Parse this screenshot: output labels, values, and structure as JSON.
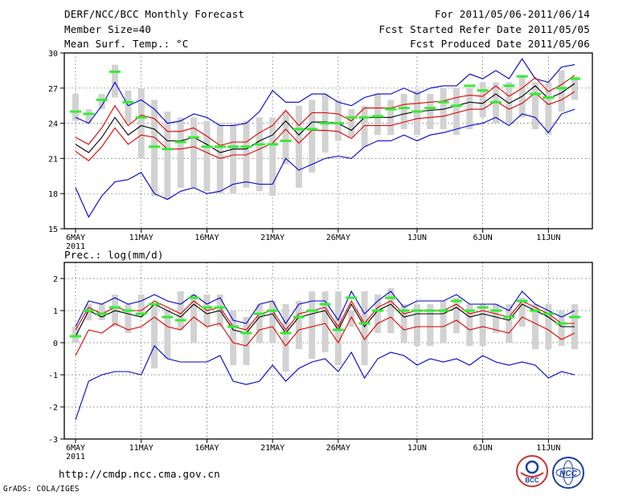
{
  "header": {
    "title": "DERF/NCC/BCC Monthly Forecast",
    "member_size": "Member Size=40",
    "variable": "Mean Surf. Temp.: °C",
    "period": "For 2011/05/06-2011/06/14",
    "started": "Fcst Started Refer Date 2011/05/05",
    "produced": "Fcst Produced Date 2011/05/06"
  },
  "footer": {
    "url": "http://cmdp.ncc.cma.gov.cn",
    "credit": "GrADS: COLA/IGES",
    "logo_left": "BCC",
    "logo_right": "NCC"
  },
  "colors": {
    "box": "#d2d2d2",
    "median": "#33ee33",
    "mean": "#000000",
    "inner_band": "#dd0000",
    "outer_band": "#0000cc",
    "frame": "#000000"
  },
  "chart_data": [
    {
      "type": "box-ensemble",
      "title": "Mean Surf. Temp.: °C",
      "ylim": [
        15,
        30
      ],
      "yticks": [
        15,
        18,
        21,
        24,
        27,
        30
      ],
      "xtick_labels": [
        "6MAY",
        "11MAY",
        "16MAY",
        "21MAY",
        "26MAY",
        "1JUN",
        "6JUN",
        "11JUN"
      ],
      "xtick_days": [
        0,
        5,
        10,
        15,
        20,
        26,
        31,
        36
      ],
      "year_label": "2011",
      "days": 39,
      "box_low": [
        24.2,
        24.0,
        25.2,
        26.2,
        24.0,
        21.0,
        17.8,
        17.5,
        18.5,
        18.5,
        18.2,
        18.0,
        18.0,
        18.5,
        18.2,
        17.8,
        20.5,
        18.5,
        19.8,
        21.5,
        22.5,
        22.8,
        22.0,
        23.0,
        23.0,
        23.5,
        23.0,
        23.5,
        23.5,
        23.0,
        23.5,
        24.5,
        24.0,
        24.0,
        24.5,
        23.5,
        23.0,
        25.0,
        26.0
      ],
      "box_high": [
        26.5,
        25.2,
        26.5,
        29.0,
        26.8,
        27.0,
        26.0,
        25.0,
        24.5,
        24.5,
        24.2,
        24.0,
        24.0,
        24.2,
        24.5,
        24.5,
        25.0,
        25.5,
        26.0,
        26.5,
        26.0,
        25.2,
        25.5,
        26.5,
        26.0,
        26.5,
        26.8,
        26.5,
        27.0,
        27.0,
        27.0,
        27.5,
        27.5,
        27.5,
        28.0,
        27.5,
        27.5,
        28.5,
        28.0
      ],
      "median": [
        25.0,
        24.8,
        26.0,
        28.4,
        25.8,
        24.5,
        22.0,
        21.8,
        22.4,
        22.8,
        22.0,
        22.0,
        22.0,
        22.0,
        22.2,
        22.2,
        22.5,
        23.5,
        23.5,
        24.0,
        24.0,
        24.5,
        24.5,
        24.6,
        25.2,
        25.3,
        25.0,
        25.3,
        25.8,
        25.5,
        27.2,
        26.8,
        25.8,
        27.2,
        28.0,
        26.5,
        26.2,
        27.0,
        27.8
      ],
      "mean": [
        22.2,
        21.5,
        22.8,
        24.5,
        23.0,
        23.8,
        23.5,
        22.5,
        22.5,
        22.8,
        22.2,
        21.5,
        21.8,
        21.8,
        22.5,
        23.0,
        24.2,
        23.0,
        24.1,
        24.1,
        24.0,
        23.4,
        24.5,
        24.5,
        24.5,
        24.8,
        25.0,
        25.1,
        25.2,
        25.5,
        25.8,
        25.7,
        26.5,
        25.7,
        26.3,
        27.2,
        26.1,
        26.6,
        27.4
      ],
      "inner_low": [
        21.6,
        20.8,
        22.0,
        23.6,
        22.2,
        23.0,
        22.8,
        21.8,
        21.8,
        22.0,
        21.5,
        21.0,
        21.3,
        21.3,
        21.8,
        22.3,
        23.5,
        22.3,
        23.4,
        23.4,
        23.3,
        22.7,
        23.8,
        23.8,
        23.8,
        24.1,
        24.4,
        24.5,
        24.6,
        24.9,
        25.2,
        25.2,
        25.9,
        25.2,
        25.7,
        26.6,
        25.6,
        26.0,
        26.7
      ],
      "inner_high": [
        22.8,
        22.2,
        23.6,
        25.5,
        23.8,
        24.7,
        24.4,
        23.3,
        23.3,
        23.6,
        22.9,
        22.1,
        22.4,
        22.4,
        23.2,
        23.8,
        25.1,
        23.8,
        24.9,
        24.9,
        24.8,
        24.2,
        25.3,
        25.3,
        25.3,
        25.6,
        25.7,
        25.8,
        25.9,
        26.2,
        26.4,
        26.3,
        27.2,
        26.3,
        27.0,
        27.9,
        26.7,
        27.3,
        28.1
      ],
      "outer_low": [
        18.5,
        16.0,
        17.8,
        19.0,
        19.2,
        19.8,
        18.0,
        17.5,
        18.2,
        18.5,
        18.0,
        18.2,
        18.8,
        19.0,
        18.8,
        18.8,
        21.0,
        20.0,
        20.5,
        21.0,
        21.2,
        21.0,
        22.0,
        22.5,
        22.5,
        23.0,
        22.5,
        23.0,
        23.2,
        23.5,
        23.8,
        24.0,
        24.5,
        23.8,
        24.8,
        24.5,
        23.2,
        24.8,
        25.2
      ],
      "outer_high": [
        24.5,
        24.0,
        25.5,
        27.5,
        25.5,
        26.0,
        25.2,
        24.0,
        24.2,
        24.8,
        24.5,
        23.8,
        23.8,
        24.0,
        25.0,
        26.8,
        25.8,
        25.8,
        26.5,
        26.5,
        25.8,
        25.5,
        26.2,
        26.5,
        26.5,
        27.0,
        26.5,
        27.0,
        27.2,
        27.2,
        28.2,
        27.8,
        28.5,
        27.8,
        29.5,
        27.8,
        27.5,
        28.8,
        29.0
      ]
    },
    {
      "type": "box-ensemble",
      "title": "Prec.: log(mm/d)",
      "ylim": [
        -3,
        2.5
      ],
      "yticks": [
        -3,
        -2,
        -1,
        0,
        1,
        2
      ],
      "xtick_labels": [
        "6MAY",
        "11MAY",
        "16MAY",
        "21MAY",
        "26MAY",
        "1JUN",
        "6JUN",
        "11JUN"
      ],
      "xtick_days": [
        0,
        5,
        10,
        15,
        20,
        26,
        31,
        36
      ],
      "year_label": "2011",
      "days": 39,
      "box_low": [
        0.0,
        0.7,
        0.7,
        0.5,
        0.3,
        0.8,
        -0.8,
        -0.5,
        0.4,
        0.0,
        0.5,
        0.5,
        -0.7,
        -0.7,
        0.0,
        0.0,
        -0.9,
        -0.2,
        -0.5,
        -0.3,
        -0.7,
        0.5,
        -0.7,
        0.3,
        0.3,
        0.0,
        -0.1,
        -0.1,
        0.0,
        0.3,
        -0.1,
        -0.1,
        0.3,
        0.0,
        0.5,
        -0.2,
        -0.2,
        -0.1,
        -0.2
      ],
      "box_high": [
        0.5,
        1.2,
        1.2,
        1.5,
        1.2,
        1.5,
        1.2,
        1.0,
        1.6,
        1.5,
        1.5,
        1.5,
        1.0,
        0.8,
        1.2,
        1.3,
        1.2,
        1.3,
        1.6,
        1.6,
        1.6,
        1.0,
        1.6,
        1.5,
        1.7,
        1.2,
        1.2,
        1.2,
        1.3,
        1.4,
        1.2,
        1.2,
        1.2,
        1.2,
        1.4,
        1.2,
        1.2,
        1.0,
        1.2
      ],
      "median": [
        0.2,
        1.0,
        0.9,
        1.1,
        1.0,
        0.9,
        1.2,
        0.8,
        0.7,
        1.4,
        1.1,
        1.1,
        0.5,
        0.3,
        0.9,
        1.0,
        0.3,
        0.8,
        1.0,
        1.2,
        0.4,
        1.4,
        0.6,
        1.0,
        1.4,
        1.0,
        1.0,
        1.0,
        1.0,
        1.3,
        1.0,
        1.1,
        1.0,
        0.8,
        1.3,
        1.0,
        0.9,
        0.6,
        0.8
      ],
      "mean": [
        0.2,
        1.0,
        0.8,
        1.0,
        0.9,
        0.8,
        1.2,
        1.0,
        0.8,
        1.2,
        0.9,
        1.0,
        0.4,
        0.3,
        0.8,
        0.9,
        0.3,
        0.8,
        0.9,
        1.0,
        0.4,
        1.2,
        0.5,
        1.0,
        1.2,
        0.8,
        0.9,
        0.9,
        0.9,
        1.1,
        0.8,
        0.9,
        0.8,
        0.7,
        1.2,
        1.0,
        0.8,
        0.5,
        0.5
      ],
      "inner_low": [
        -0.4,
        0.4,
        0.3,
        0.6,
        0.4,
        0.5,
        0.8,
        0.5,
        0.4,
        0.8,
        0.5,
        0.6,
        0.0,
        -0.1,
        0.4,
        0.5,
        -0.1,
        0.4,
        0.5,
        0.6,
        0.0,
        0.8,
        0.1,
        0.6,
        0.8,
        0.4,
        0.5,
        0.5,
        0.5,
        0.7,
        0.4,
        0.5,
        0.4,
        0.3,
        0.8,
        0.6,
        0.4,
        0.1,
        0.3
      ],
      "inner_high": [
        0.4,
        1.1,
        0.9,
        1.1,
        1.0,
        1.0,
        1.3,
        1.1,
        0.9,
        1.3,
        1.0,
        1.1,
        0.5,
        0.4,
        0.9,
        1.0,
        0.4,
        0.9,
        1.0,
        1.1,
        0.5,
        1.3,
        0.6,
        1.1,
        1.3,
        0.9,
        1.0,
        1.0,
        1.0,
        1.2,
        0.9,
        1.0,
        0.9,
        0.8,
        1.3,
        1.1,
        0.9,
        0.6,
        0.6
      ],
      "outer_low": [
        -2.4,
        -1.2,
        -1.0,
        -0.9,
        -0.9,
        -1.0,
        -0.1,
        -0.5,
        -0.6,
        -0.6,
        -0.6,
        -0.4,
        -1.2,
        -1.3,
        -1.2,
        -0.7,
        -1.2,
        -0.8,
        -0.6,
        -0.5,
        -0.9,
        -0.3,
        -1.1,
        -0.5,
        -0.3,
        -0.4,
        -0.7,
        -0.5,
        -0.6,
        -0.5,
        -0.7,
        -0.4,
        -0.6,
        -0.7,
        -0.6,
        -0.7,
        -1.1,
        -0.9,
        -1.0
      ],
      "outer_high": [
        0.5,
        1.3,
        1.2,
        1.4,
        1.2,
        1.3,
        1.5,
        1.3,
        1.2,
        1.5,
        1.2,
        1.4,
        0.7,
        0.6,
        1.2,
        1.3,
        0.6,
        1.2,
        1.3,
        1.3,
        0.7,
        1.6,
        0.9,
        1.3,
        1.6,
        1.1,
        1.3,
        1.3,
        1.3,
        1.5,
        1.2,
        1.2,
        1.2,
        1.0,
        1.6,
        1.2,
        1.0,
        0.8,
        1.0
      ]
    }
  ]
}
